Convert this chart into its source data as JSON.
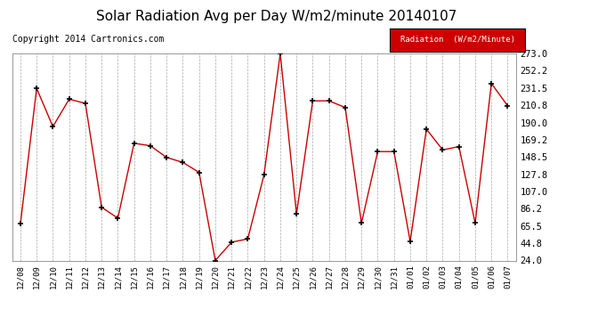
{
  "title": "Solar Radiation Avg per Day W/m2/minute 20140107",
  "copyright": "Copyright 2014 Cartronics.com",
  "legend_label": "Radiation  (W/m2/Minute)",
  "dates": [
    "12/08",
    "12/09",
    "12/10",
    "12/11",
    "12/12",
    "12/13",
    "12/14",
    "12/15",
    "12/16",
    "12/17",
    "12/18",
    "12/19",
    "12/20",
    "12/21",
    "12/22",
    "12/23",
    "12/24",
    "12/25",
    "12/26",
    "12/27",
    "12/28",
    "12/29",
    "12/30",
    "12/31",
    "01/01",
    "01/02",
    "01/03",
    "01/04",
    "01/05",
    "01/06",
    "01/07"
  ],
  "values": [
    68,
    231,
    185,
    218,
    213,
    88,
    75,
    165,
    162,
    148,
    142,
    130,
    24,
    46,
    50,
    127,
    273,
    80,
    216,
    216,
    208,
    69,
    155,
    155,
    47,
    182,
    157,
    161,
    69,
    237,
    210
  ],
  "yticks": [
    24.0,
    44.8,
    65.5,
    86.2,
    107.0,
    127.8,
    148.5,
    169.2,
    190.0,
    210.8,
    231.5,
    252.2,
    273.0
  ],
  "ymin": 24.0,
  "ymax": 273.0,
  "line_color": "#cc0000",
  "marker_color": "#000000",
  "bg_color": "#ffffff",
  "grid_color": "#aaaaaa",
  "legend_bg": "#cc0000",
  "legend_text_color": "#ffffff",
  "title_fontsize": 11,
  "copyright_fontsize": 7
}
